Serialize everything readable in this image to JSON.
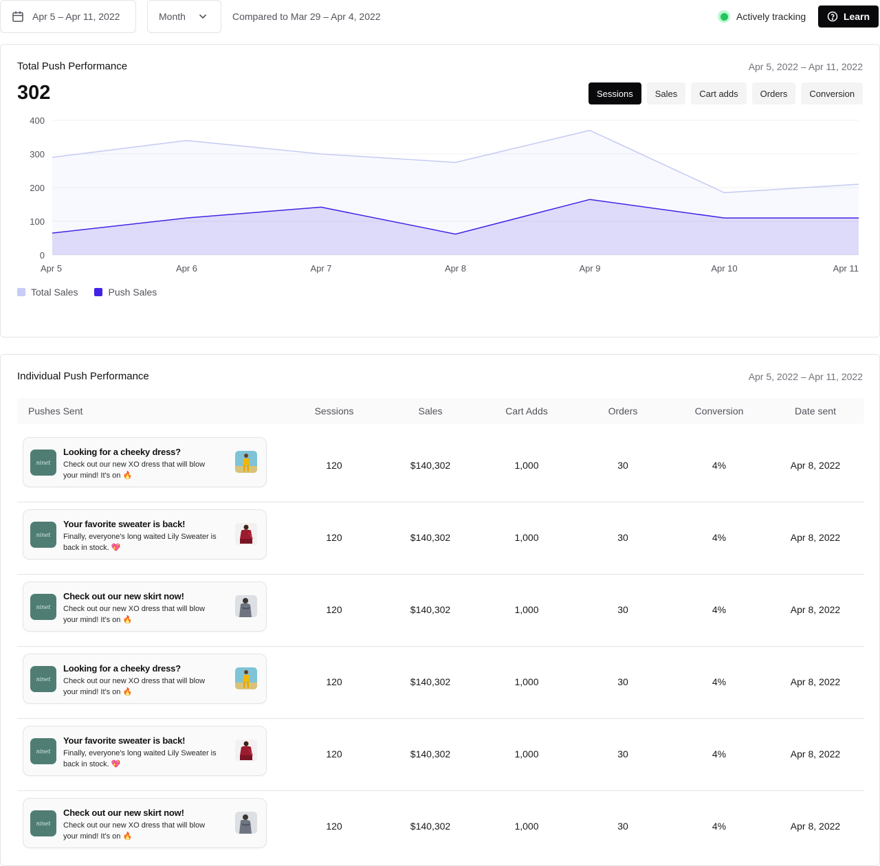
{
  "topbar": {
    "date_range": "Apr 5 – Apr 11, 2022",
    "period": "Month",
    "compared": "Compared to Mar 29 – Apr 4, 2022",
    "status": "Actively tracking",
    "learn": "Learn",
    "status_color": "#22c55e"
  },
  "total": {
    "title": "Total Push Performance",
    "date_range": "Apr 5, 2022 – Apr 11, 2022",
    "value": "302",
    "tabs": [
      "Sessions",
      "Sales",
      "Cart adds",
      "Orders",
      "Conversion"
    ],
    "active_tab": "Sessions"
  },
  "chart_data": {
    "type": "area",
    "categories": [
      "Apr 5",
      "Apr 6",
      "Apr 7",
      "Apr 8",
      "Apr 9",
      "Apr 10",
      "Apr 11"
    ],
    "yticks": [
      "0",
      "100",
      "200",
      "300",
      "400"
    ],
    "ylim": [
      0,
      400
    ],
    "grid": true,
    "legend_position": "bottom-left",
    "series": [
      {
        "name": "Total Sales",
        "values": [
          290,
          340,
          300,
          275,
          370,
          185,
          210
        ],
        "color": "#c7cdf4"
      },
      {
        "name": "Push Sales",
        "values": [
          65,
          110,
          142,
          62,
          165,
          110,
          110
        ],
        "color": "#4322e6"
      }
    ]
  },
  "individual": {
    "title": "Individual Push Performance",
    "date_range": "Apr 5, 2022 – Apr 11, 2022",
    "columns": [
      "Pushes Sent",
      "Sessions",
      "Sales",
      "Cart Adds",
      "Orders",
      "Conversion",
      "Date sent"
    ],
    "app_name": "ninet",
    "rows": [
      {
        "title": "Looking for a cheeky dress?",
        "body": "Check out our new XO dress that will blow your mind! It's on 🔥",
        "thumb": "yellow-outfit",
        "sessions": "120",
        "sales": "$140,302",
        "cart_adds": "1,000",
        "orders": "30",
        "conversion": "4%",
        "date": "Apr 8, 2022"
      },
      {
        "title": "Your favorite sweater is back!",
        "body": "Finally, everyone's long waited Lily Sweater is back in stock. 💖",
        "thumb": "red-sweater",
        "sessions": "120",
        "sales": "$140,302",
        "cart_adds": "1,000",
        "orders": "30",
        "conversion": "4%",
        "date": "Apr 8, 2022"
      },
      {
        "title": "Check out our new skirt now!",
        "body": "Check out our new XO dress that will blow your mind! It's on 🔥",
        "thumb": "grey-skirt",
        "sessions": "120",
        "sales": "$140,302",
        "cart_adds": "1,000",
        "orders": "30",
        "conversion": "4%",
        "date": "Apr 8, 2022"
      },
      {
        "title": "Looking for a cheeky dress?",
        "body": "Check out our new XO dress that will blow your mind! It's on 🔥",
        "thumb": "yellow-outfit",
        "sessions": "120",
        "sales": "$140,302",
        "cart_adds": "1,000",
        "orders": "30",
        "conversion": "4%",
        "date": "Apr 8, 2022"
      },
      {
        "title": "Your favorite sweater is back!",
        "body": "Finally, everyone's long waited Lily Sweater is back in stock. 💖",
        "thumb": "red-sweater",
        "sessions": "120",
        "sales": "$140,302",
        "cart_adds": "1,000",
        "orders": "30",
        "conversion": "4%",
        "date": "Apr 8, 2022"
      },
      {
        "title": "Check out our new skirt now!",
        "body": "Check out our new XO dress that will blow your mind! It's on 🔥",
        "thumb": "grey-skirt",
        "sessions": "120",
        "sales": "$140,302",
        "cart_adds": "1,000",
        "orders": "30",
        "conversion": "4%",
        "date": "Apr 8, 2022"
      }
    ]
  }
}
